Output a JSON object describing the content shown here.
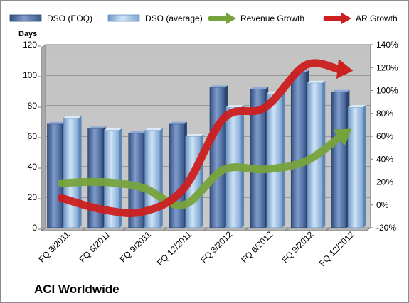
{
  "chart_data": {
    "type": "bar",
    "company": "ACI Worldwide",
    "categories": [
      "FQ 3/2011",
      "FQ 6/2011",
      "FQ 9/2011",
      "FQ 12/2011",
      "FQ 3/2012",
      "FQ 6/2012",
      "FQ 9/2012",
      "FQ 12/2012"
    ],
    "ylabel": "Days",
    "ylim": [
      0,
      120
    ],
    "y_ticks": [
      "0",
      "20",
      "40",
      "60",
      "80",
      "100",
      "120"
    ],
    "y2lim": [
      -20,
      140
    ],
    "y2_ticks": [
      "-20%",
      "0%",
      "20%",
      "40%",
      "60%",
      "80%",
      "100%",
      "120%",
      "140%"
    ],
    "grid": true,
    "legend_position": "top",
    "series": [
      {
        "name": "DSO (EOQ)",
        "kind": "bar",
        "axis": "left",
        "color": "#4f6fa8",
        "values": [
          68,
          65,
          62,
          68,
          92,
          91,
          102,
          89
        ]
      },
      {
        "name": "DSO (average)",
        "kind": "bar",
        "axis": "left",
        "color": "#9fc2e6",
        "values": [
          72,
          64,
          64,
          60,
          79,
          88,
          95,
          79
        ]
      },
      {
        "name": "Revenue Growth",
        "kind": "arrow-line",
        "axis": "right",
        "unit": "%",
        "color": "#77a33c",
        "values": [
          19,
          20,
          15,
          0,
          31,
          31,
          38,
          63
        ]
      },
      {
        "name": "AR Growth",
        "kind": "arrow-line",
        "axis": "right",
        "unit": "%",
        "color": "#cc1f1f",
        "values": [
          6,
          -4,
          -6,
          14,
          76,
          85,
          122,
          118
        ]
      }
    ]
  }
}
